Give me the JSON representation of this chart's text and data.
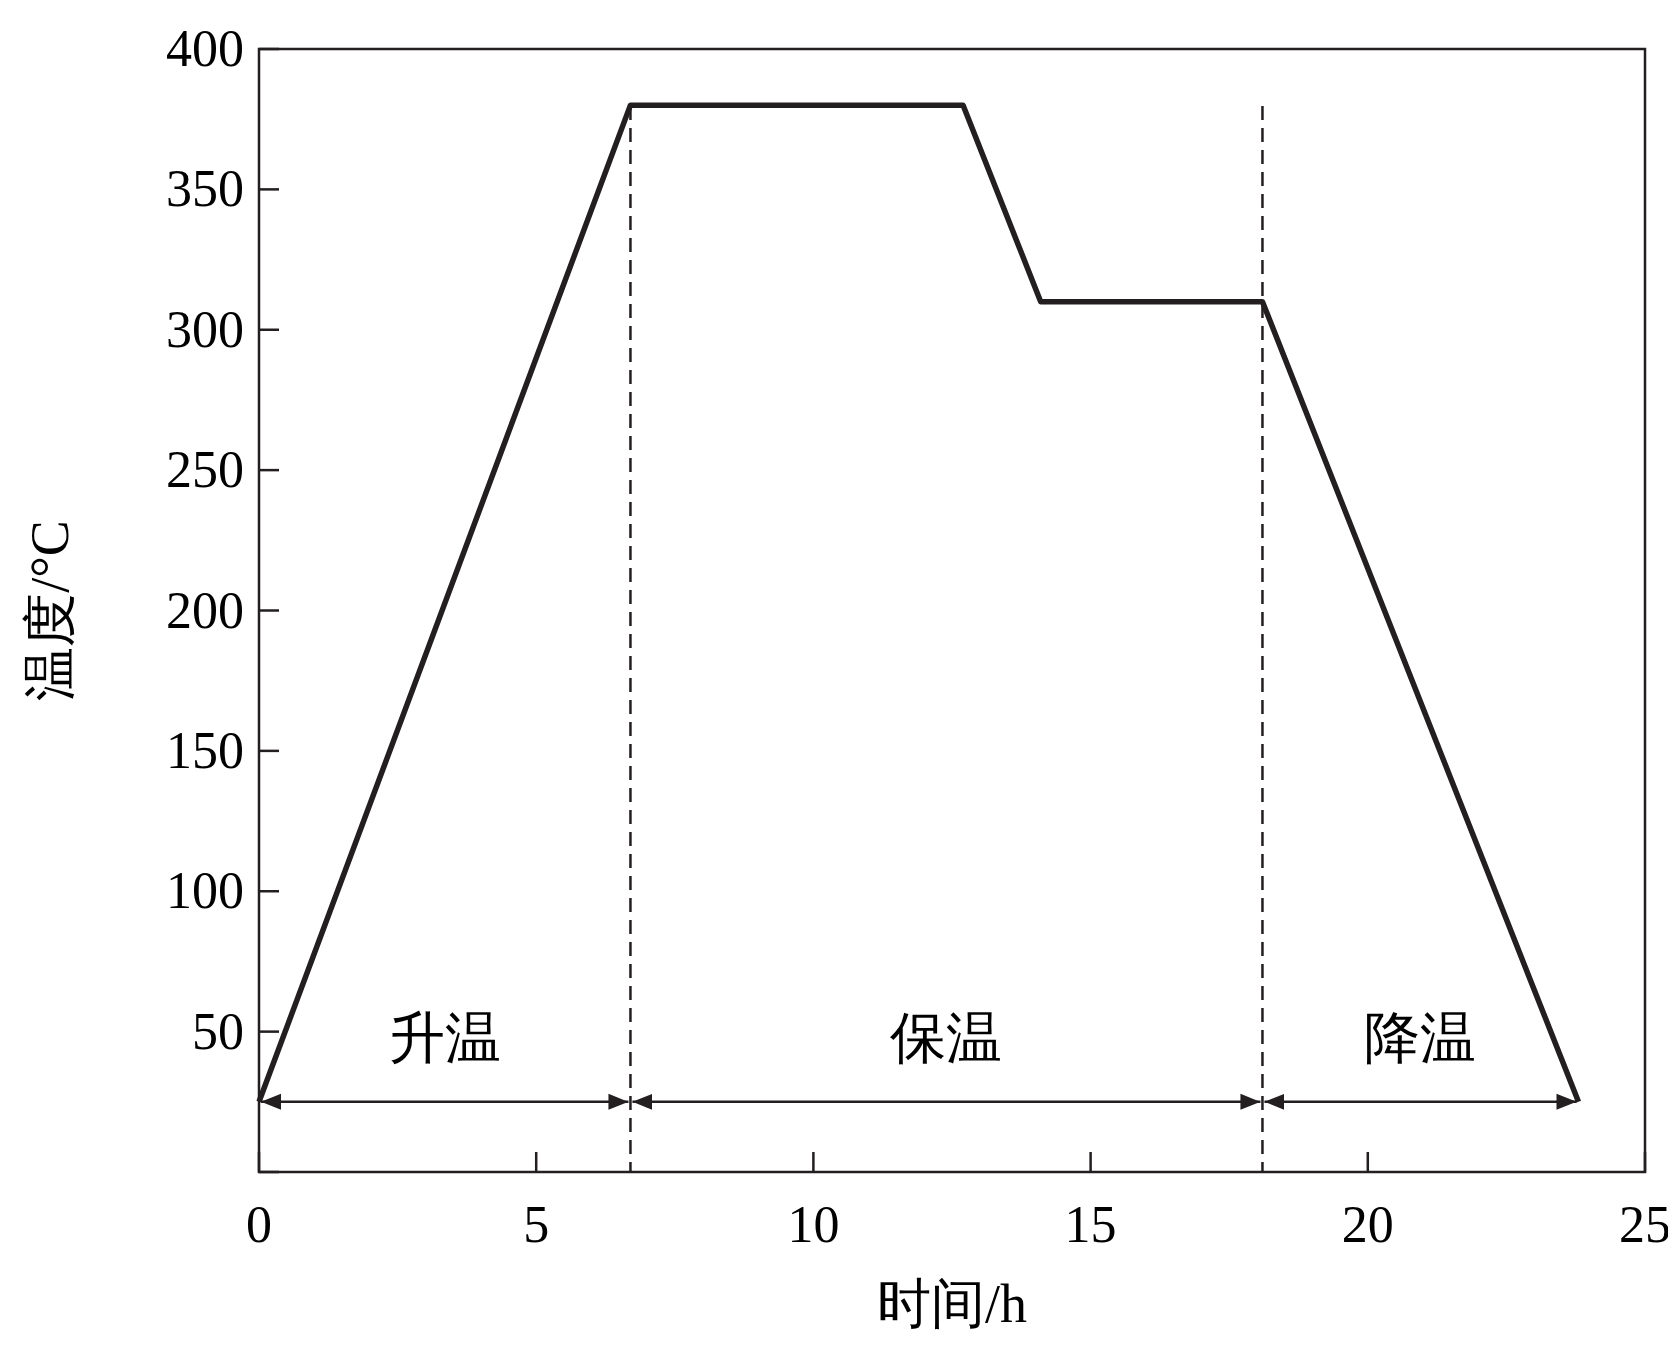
{
  "chart_data": {
    "type": "line",
    "xlabel": "时间/h",
    "ylabel": "温度/°C",
    "xlim": [
      0,
      25
    ],
    "xticks": [
      0,
      5,
      10,
      15,
      20,
      25
    ],
    "ylim": [
      0,
      400
    ],
    "yticks": [
      {
        "value": 0,
        "label": null
      },
      50,
      100,
      150,
      200,
      250,
      300,
      350,
      400
    ],
    "grid": false,
    "marker": "none",
    "line_style": "solid",
    "series": [
      {
        "color": "#231f20",
        "x": [
          0,
          6.7,
          12.7,
          14.1,
          18.1,
          23.8
        ],
        "values": [
          25,
          380,
          380,
          310,
          310,
          25
        ]
      }
    ],
    "ref_lines": [
      {
        "axis": "x",
        "value": 6.7,
        "line_style": "dashed",
        "color": "#231f20"
      },
      {
        "axis": "x",
        "value": 18.1,
        "line_style": "dashed",
        "color": "#231f20"
      }
    ],
    "annotations": [
      "升温",
      "保温",
      "降温"
    ]
  }
}
